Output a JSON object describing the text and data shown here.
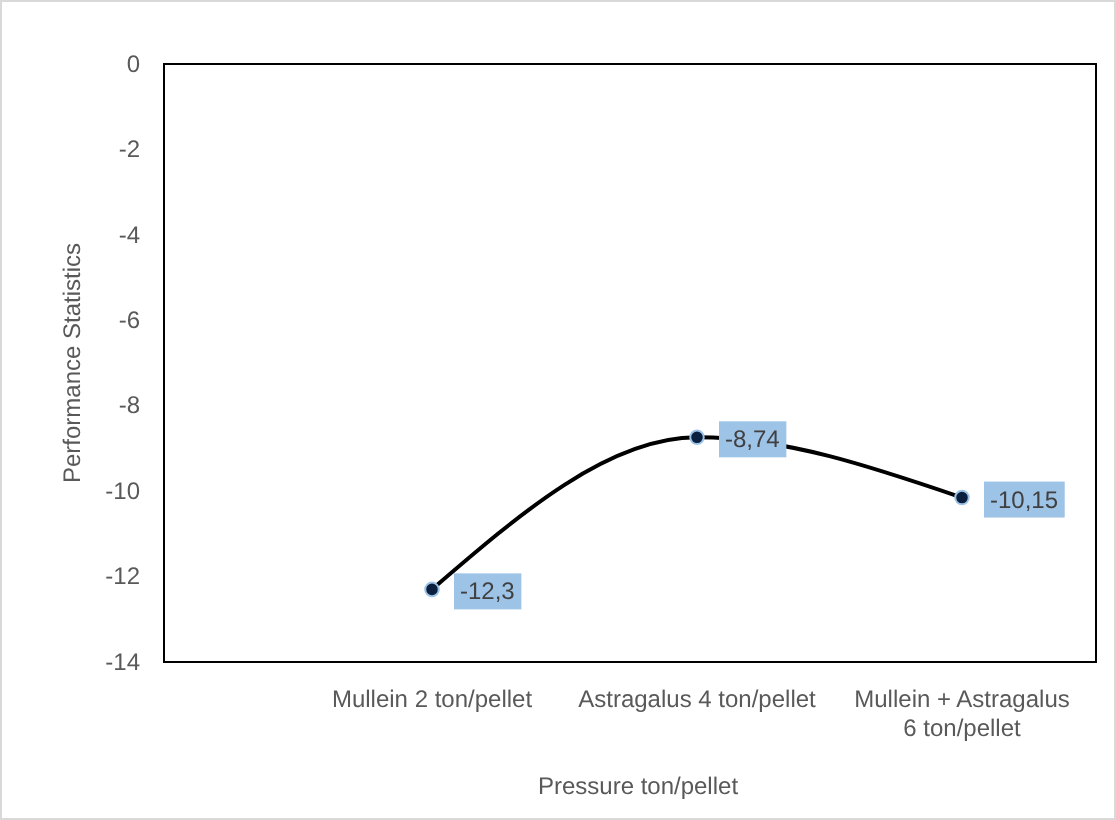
{
  "chart_data": {
    "type": "line",
    "xlabel": "Pressure ton/pellet",
    "ylabel": "Performance Statistics",
    "categories": [
      "Mullein 2 ton/pellet",
      "Astragalus 4 ton/pellet",
      "Mullein + Astragalus 6 ton/pellet"
    ],
    "series": [
      {
        "color": "#000000",
        "values": [
          -12.3,
          -8.74,
          -10.15
        ],
        "value_labels": [
          "-12,3",
          "-8,74",
          "-10,15"
        ]
      }
    ],
    "ylim": [
      -14,
      0
    ],
    "yticks": [
      0,
      -2,
      -4,
      -6,
      -8,
      -10,
      -12,
      -14
    ],
    "grid": false,
    "marker": "circle",
    "line_style": "solid"
  }
}
